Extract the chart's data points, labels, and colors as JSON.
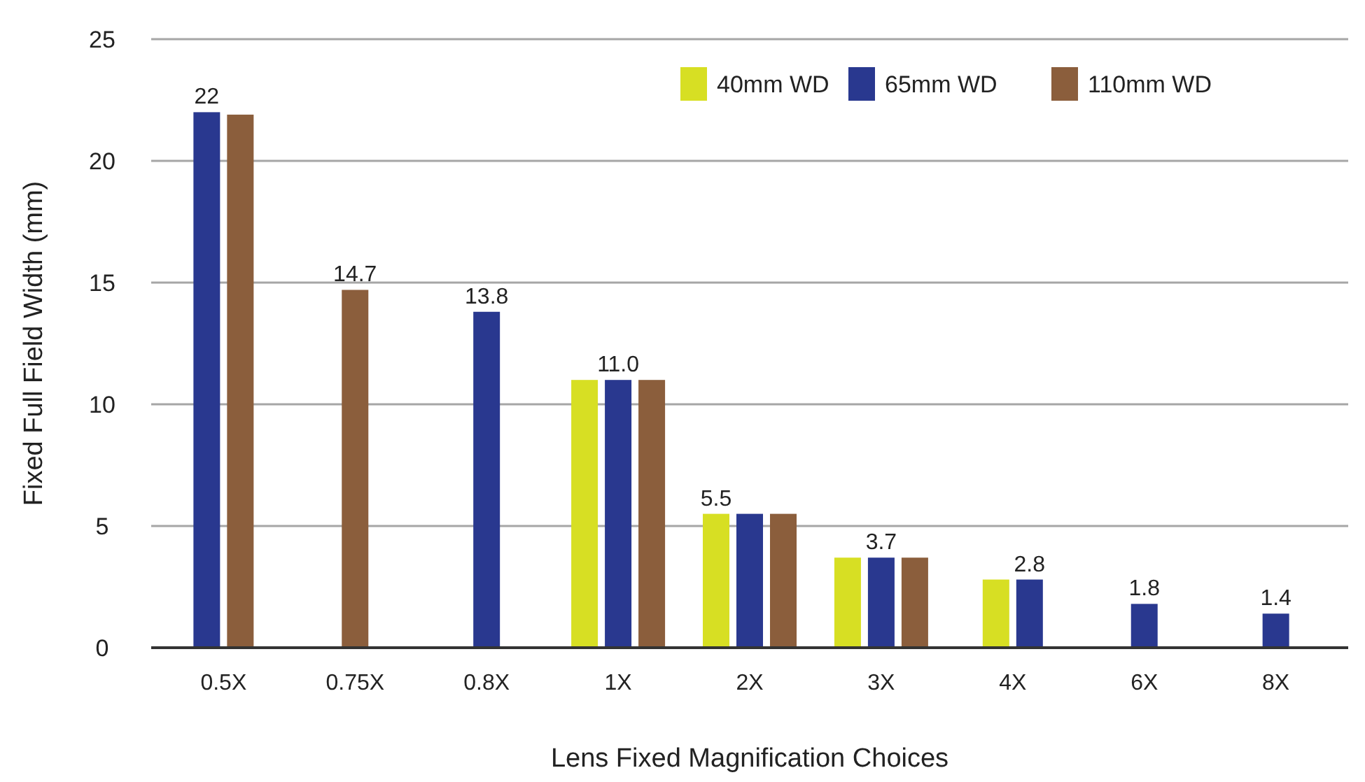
{
  "chart_data": {
    "type": "bar",
    "xlabel": "Lens Fixed Magnification Choices",
    "ylabel": "Fixed Full Field Width (mm)",
    "categories": [
      "0.5X",
      "0.75X",
      "0.8X",
      "1X",
      "2X",
      "3X",
      "4X",
      "6X",
      "8X"
    ],
    "series": [
      {
        "name": "40mm WD",
        "color": "#d7df23",
        "values": [
          null,
          null,
          null,
          11.0,
          5.5,
          3.7,
          2.8,
          null,
          null
        ],
        "value_labels": [
          null,
          null,
          null,
          null,
          "5.5",
          null,
          null,
          null,
          null
        ]
      },
      {
        "name": "65mm WD",
        "color": "#29388f",
        "values": [
          22,
          null,
          13.8,
          11.0,
          5.5,
          3.7,
          2.8,
          1.8,
          1.4
        ],
        "value_labels": [
          "22",
          null,
          "13.8",
          "11.0",
          null,
          "3.7",
          "2.8",
          "1.8",
          "1.4"
        ]
      },
      {
        "name": "110mm WD",
        "color": "#8b5e3c",
        "values": [
          21.9,
          14.7,
          null,
          11.0,
          5.5,
          3.7,
          null,
          null,
          null
        ],
        "value_labels": [
          null,
          "14.7",
          null,
          null,
          null,
          null,
          null,
          null,
          null
        ]
      }
    ],
    "ylim": [
      0,
      25
    ],
    "yticks": [
      0,
      5,
      10,
      15,
      20,
      25
    ],
    "grid": "y",
    "legend": "top right"
  }
}
